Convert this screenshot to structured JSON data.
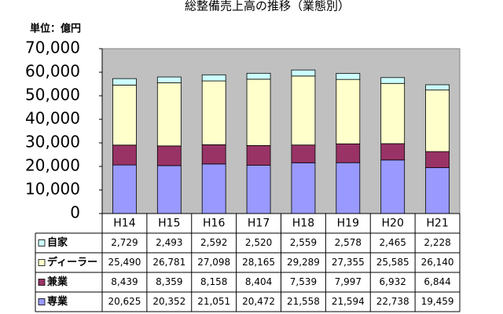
{
  "chart_data": {
    "type": "stacked-bar",
    "title": "総整備売上高の推移（業態別）",
    "unit_label": "単位：億円",
    "categories": [
      "H14",
      "H15",
      "H16",
      "H17",
      "H18",
      "H19",
      "H20",
      "H21"
    ],
    "series": [
      {
        "name": "自家",
        "color": "#ccffff",
        "values": [
          2729,
          2493,
          2592,
          2520,
          2559,
          2578,
          2465,
          2228
        ],
        "value_labels": [
          "2,729",
          "2,493",
          "2,592",
          "2,520",
          "2,559",
          "2,578",
          "2,465",
          "2,228"
        ]
      },
      {
        "name": "ディーラー",
        "color": "#ffffcc",
        "values": [
          25490,
          26781,
          27098,
          28165,
          29289,
          27355,
          25585,
          26140
        ],
        "value_labels": [
          "25,490",
          "26,781",
          "27,098",
          "28,165",
          "29,289",
          "27,355",
          "25,585",
          "26,140"
        ]
      },
      {
        "name": "兼業",
        "color": "#993366",
        "values": [
          8439,
          8359,
          8158,
          8404,
          7539,
          7997,
          6932,
          6844
        ],
        "value_labels": [
          "8,439",
          "8,359",
          "8,158",
          "8,404",
          "7,539",
          "7,997",
          "6,932",
          "6,844"
        ]
      },
      {
        "name": "専業",
        "color": "#9999ff",
        "values": [
          20625,
          20352,
          21051,
          20472,
          21558,
          21594,
          22738,
          19459
        ],
        "value_labels": [
          "20,625",
          "20,352",
          "21,051",
          "20,472",
          "21,558",
          "21,594",
          "22,738",
          "19,459"
        ]
      }
    ],
    "ylim": [
      0,
      70000
    ],
    "yticks": [
      0,
      {
        "value": 10000,
        "label": "10,000"
      },
      {
        "value": 20000,
        "label": "20,000"
      },
      {
        "value": 30000,
        "label": "30,000"
      },
      {
        "value": 40000,
        "label": "40,000"
      },
      {
        "value": 50000,
        "label": "50,000"
      },
      {
        "value": 60000,
        "label": "60,000"
      },
      {
        "value": 70000,
        "label": "70,000"
      }
    ],
    "grid": false,
    "plot_color": "#c0c0c0"
  }
}
